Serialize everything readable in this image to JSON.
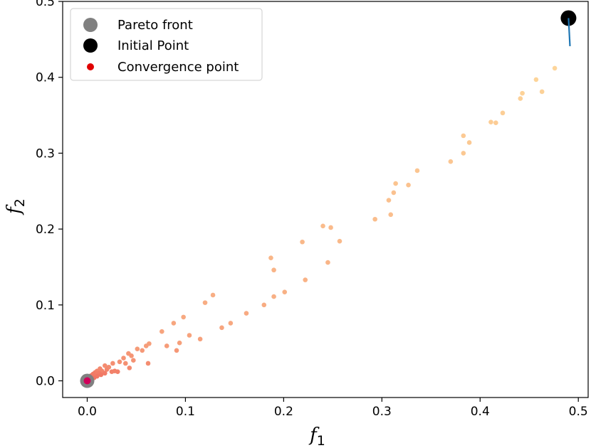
{
  "chart_data": {
    "type": "scatter",
    "xlabel": "f",
    "xlabel_sub": "1",
    "ylabel": "f",
    "ylabel_sub": "2",
    "xlim": [
      -0.025,
      0.51
    ],
    "ylim": [
      -0.022,
      0.5
    ],
    "xticks": [
      0.0,
      0.1,
      0.2,
      0.3,
      0.4,
      0.5
    ],
    "xtick_labels": [
      "0.0",
      "0.1",
      "0.2",
      "0.3",
      "0.4",
      "0.5"
    ],
    "yticks": [
      0.0,
      0.1,
      0.2,
      0.3,
      0.4,
      0.5
    ],
    "ytick_labels": [
      "0.0",
      "0.1",
      "0.2",
      "0.3",
      "0.4",
      "0.5"
    ],
    "grid": false,
    "legend": {
      "placement": "top-left",
      "entries": [
        {
          "label": "Pareto front",
          "color": "#808080",
          "marker": "large-circle"
        },
        {
          "label": "Initial Point",
          "color": "#000000",
          "marker": "large-circle"
        },
        {
          "label": "Convergence point",
          "color": "#e00000",
          "marker": "small-circle"
        }
      ]
    },
    "pareto_front": [
      [
        0.0,
        0.0
      ]
    ],
    "initial_point": [
      0.49,
      0.478
    ],
    "convergence_point": [
      0.0,
      0.0
    ],
    "initial_segment": [
      [
        0.49,
        0.478
      ],
      [
        0.4915,
        0.441
      ]
    ],
    "trajectory_colormap": {
      "start": "#fdd59a",
      "end": "#f07060"
    },
    "trajectory": [
      [
        0.476,
        0.412
      ],
      [
        0.457,
        0.397
      ],
      [
        0.443,
        0.379
      ],
      [
        0.463,
        0.381
      ],
      [
        0.441,
        0.372
      ],
      [
        0.423,
        0.353
      ],
      [
        0.411,
        0.341
      ],
      [
        0.416,
        0.34
      ],
      [
        0.383,
        0.323
      ],
      [
        0.389,
        0.314
      ],
      [
        0.383,
        0.3
      ],
      [
        0.37,
        0.289
      ],
      [
        0.336,
        0.277
      ],
      [
        0.314,
        0.26
      ],
      [
        0.327,
        0.258
      ],
      [
        0.312,
        0.248
      ],
      [
        0.307,
        0.238
      ],
      [
        0.309,
        0.219
      ],
      [
        0.293,
        0.213
      ],
      [
        0.24,
        0.204
      ],
      [
        0.248,
        0.202
      ],
      [
        0.257,
        0.184
      ],
      [
        0.219,
        0.183
      ],
      [
        0.187,
        0.162
      ],
      [
        0.245,
        0.156
      ],
      [
        0.19,
        0.146
      ],
      [
        0.222,
        0.133
      ],
      [
        0.201,
        0.117
      ],
      [
        0.19,
        0.111
      ],
      [
        0.128,
        0.113
      ],
      [
        0.12,
        0.103
      ],
      [
        0.18,
        0.1
      ],
      [
        0.162,
        0.089
      ],
      [
        0.098,
        0.084
      ],
      [
        0.146,
        0.076
      ],
      [
        0.088,
        0.076
      ],
      [
        0.137,
        0.07
      ],
      [
        0.076,
        0.065
      ],
      [
        0.104,
        0.06
      ],
      [
        0.115,
        0.055
      ],
      [
        0.094,
        0.05
      ],
      [
        0.063,
        0.049
      ],
      [
        0.06,
        0.046
      ],
      [
        0.081,
        0.046
      ],
      [
        0.051,
        0.042
      ],
      [
        0.056,
        0.04
      ],
      [
        0.091,
        0.04
      ],
      [
        0.042,
        0.036
      ],
      [
        0.045,
        0.033
      ],
      [
        0.037,
        0.03
      ],
      [
        0.047,
        0.027
      ],
      [
        0.033,
        0.025
      ],
      [
        0.039,
        0.023
      ],
      [
        0.026,
        0.023
      ],
      [
        0.062,
        0.023
      ],
      [
        0.018,
        0.02
      ],
      [
        0.022,
        0.018
      ],
      [
        0.043,
        0.017
      ],
      [
        0.013,
        0.016
      ],
      [
        0.02,
        0.015
      ],
      [
        0.01,
        0.013
      ],
      [
        0.015,
        0.013
      ],
      [
        0.028,
        0.013
      ],
      [
        0.025,
        0.012
      ],
      [
        0.031,
        0.012
      ],
      [
        0.008,
        0.011
      ],
      [
        0.012,
        0.01
      ],
      [
        0.018,
        0.01
      ],
      [
        0.006,
        0.009
      ],
      [
        0.014,
        0.008
      ],
      [
        0.004,
        0.007
      ],
      [
        0.01,
        0.006
      ],
      [
        0.003,
        0.005
      ],
      [
        0.007,
        0.004
      ],
      [
        0.002,
        0.003
      ],
      [
        0.004,
        0.002
      ],
      [
        0.001,
        0.001
      ]
    ]
  }
}
